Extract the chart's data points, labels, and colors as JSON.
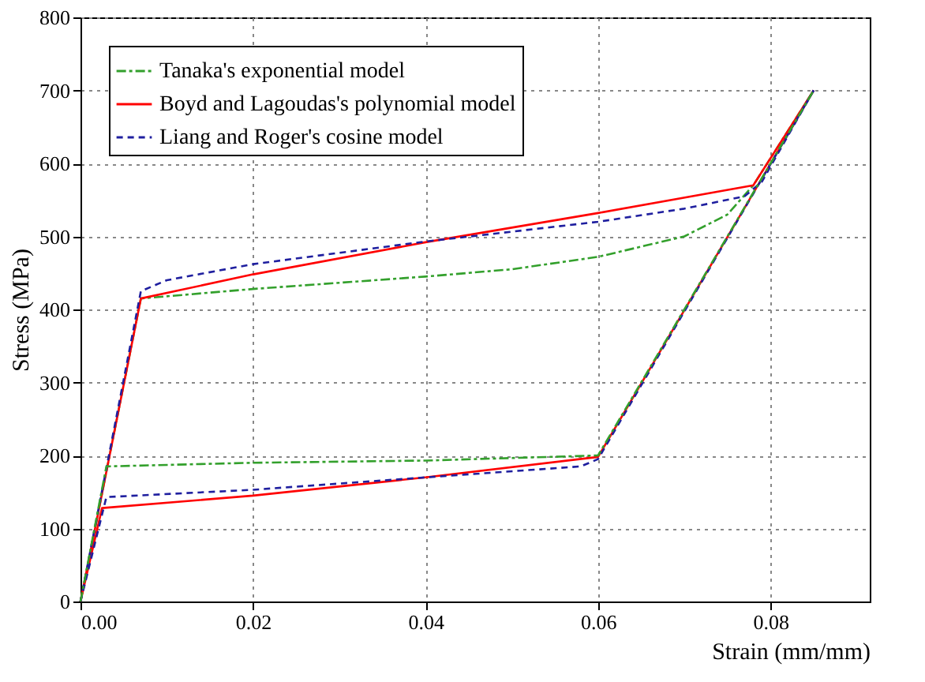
{
  "chart_data": {
    "type": "line",
    "xlabel": "Strain (mm/mm)",
    "ylabel": "Stress (MPa)",
    "xlim": [
      0,
      0.0915
    ],
    "ylim": [
      0,
      800
    ],
    "xticks": [
      {
        "value": 0,
        "label": "0.00"
      },
      {
        "value": 0.02,
        "label": "0.02"
      },
      {
        "value": 0.04,
        "label": "0.04"
      },
      {
        "value": 0.06,
        "label": "0.06"
      },
      {
        "value": 0.08,
        "label": "0.08"
      }
    ],
    "yticks": [
      0,
      100,
      200,
      300,
      400,
      500,
      600,
      700,
      800
    ],
    "grid": true,
    "legend": "top left",
    "marker": "none",
    "series": [
      {
        "name": "Tanaka's exponential model",
        "color": "#33a02c",
        "line_style": "dashdot",
        "x": [
          0,
          0.007,
          0.02,
          0.04,
          0.05,
          0.06,
          0.07,
          0.075,
          0.078,
          0.085
        ],
        "values": [
          0,
          415,
          428,
          445,
          455,
          472,
          500,
          530,
          570,
          700
        ]
      },
      {
        "name": "Boyd and Lagoudas's polynomial model",
        "color": "#ff0000",
        "line_style": "solid",
        "x": [
          0,
          0.007,
          0.02,
          0.04,
          0.06,
          0.078,
          0.085
        ],
        "values": [
          0,
          415,
          448,
          492,
          532,
          570,
          700
        ]
      },
      {
        "name": "Liang and Roger's cosine model",
        "color": "#1f1f9f",
        "line_style": "dashed",
        "x": [
          0,
          0.007,
          0.01,
          0.02,
          0.04,
          0.06,
          0.07,
          0.077,
          0.079,
          0.085
        ],
        "values": [
          0,
          425,
          440,
          462,
          493,
          520,
          538,
          555,
          575,
          700
        ]
      },
      {
        "color": "#33a02c",
        "line_style": "dashdot",
        "x": [
          0,
          0.003,
          0.02,
          0.04,
          0.06,
          0.085
        ],
        "values": [
          0,
          185,
          190,
          193,
          200,
          700
        ]
      },
      {
        "color": "#ff0000",
        "line_style": "solid",
        "x": [
          0,
          0.0025,
          0.02,
          0.04,
          0.06,
          0.085
        ],
        "values": [
          0,
          128,
          145,
          170,
          198,
          700
        ]
      },
      {
        "color": "#1f1f9f",
        "line_style": "dashed",
        "x": [
          0,
          0.003,
          0.02,
          0.04,
          0.058,
          0.06,
          0.085
        ],
        "values": [
          0,
          143,
          153,
          170,
          185,
          195,
          700
        ]
      }
    ]
  }
}
